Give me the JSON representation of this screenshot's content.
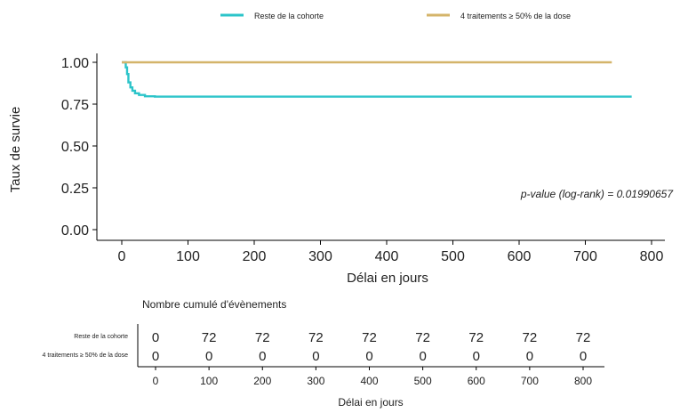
{
  "chart_data": [
    {
      "type": "line",
      "title": "",
      "xlabel": "Délai en jours",
      "ylabel": "Taux de survie",
      "xlim": [
        0,
        800
      ],
      "ylim": [
        0,
        1
      ],
      "xticks": [
        "0",
        "100",
        "200",
        "300",
        "400",
        "500",
        "600",
        "700",
        "800"
      ],
      "yticks": [
        "0.00",
        "0.25",
        "0.50",
        "0.75",
        "1.00"
      ],
      "grid": false,
      "legend_position": "top",
      "annotation": "p-value (log-rank) = 0.01990657",
      "series": [
        {
          "name": "Reste de la cohorte",
          "color": "#2bc4c9",
          "step": true,
          "points": [
            [
              0,
              1.0
            ],
            [
              5,
              1.0
            ],
            [
              6,
              0.97
            ],
            [
              8,
              0.93
            ],
            [
              10,
              0.88
            ],
            [
              13,
              0.85
            ],
            [
              16,
              0.83
            ],
            [
              20,
              0.815
            ],
            [
              26,
              0.805
            ],
            [
              35,
              0.797
            ],
            [
              50,
              0.795
            ],
            [
              200,
              0.795
            ],
            [
              500,
              0.795
            ],
            [
              770,
              0.795
            ]
          ]
        },
        {
          "name": "4 traitements ≥ 50% de la dose",
          "color": "#d4b46a",
          "step": true,
          "points": [
            [
              0,
              1.0
            ],
            [
              740,
              1.0
            ]
          ]
        }
      ]
    },
    {
      "type": "table",
      "title": "Nombre cumulé d'évènements",
      "xlabel": "Délai en jours",
      "x": [
        "0",
        "100",
        "200",
        "300",
        "400",
        "500",
        "600",
        "700",
        "800"
      ],
      "rows": [
        {
          "name": "Reste de la cohorte",
          "values": [
            "0",
            "72",
            "72",
            "72",
            "72",
            "72",
            "72",
            "72",
            "72"
          ]
        },
        {
          "name": "4 traitements ≥ 50% de la dose",
          "values": [
            "0",
            "0",
            "0",
            "0",
            "0",
            "0",
            "0",
            "0",
            "0"
          ]
        }
      ]
    }
  ]
}
